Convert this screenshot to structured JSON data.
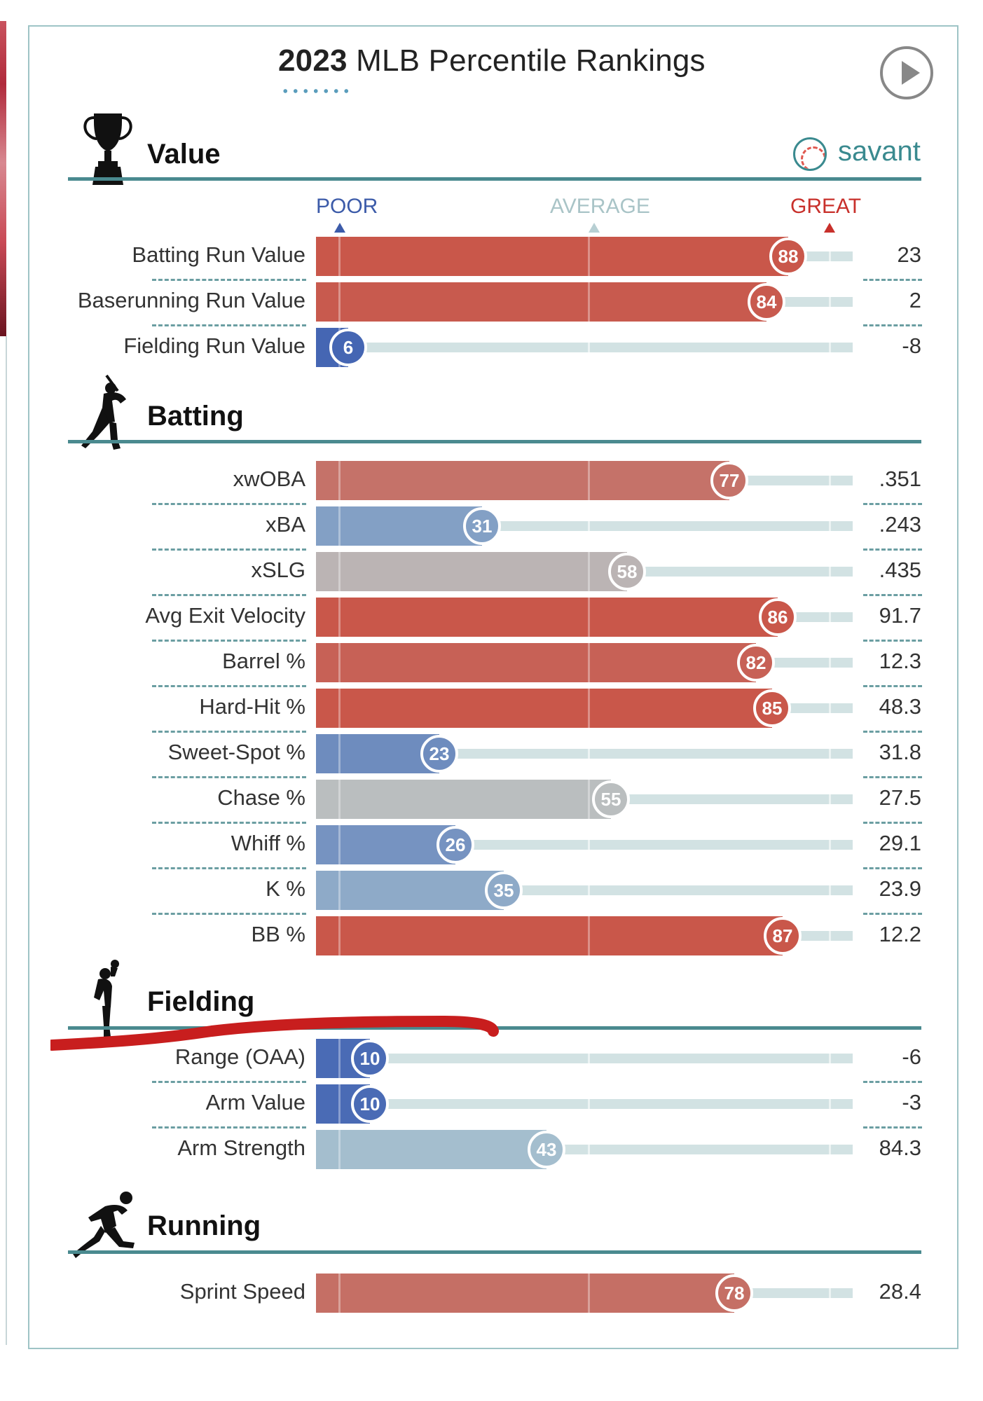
{
  "title": {
    "year": "2023",
    "rest": "MLB Percentile Rankings"
  },
  "brand": "savant",
  "scale": {
    "poor": "POOR",
    "average": "AVERAGE",
    "great": "GREAT"
  },
  "colors": {
    "great": "#c9574a",
    "poor": "#4566b3",
    "average": "#b7cfd3",
    "poor_label": "#3c5ba9",
    "great_label": "#c8302b",
    "avg_label": "#a9c4c7"
  },
  "icons": {
    "value": "trophy-icon",
    "batting": "batter-icon",
    "fielding": "fielder-icon",
    "running": "runner-icon",
    "brand": "baseball-icon",
    "play": "play-icon"
  },
  "chart_data": {
    "type": "bar",
    "title": "2023 MLB Percentile Rankings",
    "xlim": [
      0,
      100
    ],
    "sections": [
      {
        "name": "Value",
        "metrics": [
          {
            "label": "Batting Run Value",
            "percentile": 88,
            "value": "23"
          },
          {
            "label": "Baserunning Run Value",
            "percentile": 84,
            "value": "2"
          },
          {
            "label": "Fielding Run Value",
            "percentile": 6,
            "value": "-8"
          }
        ]
      },
      {
        "name": "Batting",
        "metrics": [
          {
            "label": "xwOBA",
            "percentile": 77,
            "value": ".351"
          },
          {
            "label": "xBA",
            "percentile": 31,
            "value": ".243"
          },
          {
            "label": "xSLG",
            "percentile": 58,
            "value": ".435"
          },
          {
            "label": "Avg Exit Velocity",
            "percentile": 86,
            "value": "91.7"
          },
          {
            "label": "Barrel %",
            "percentile": 82,
            "value": "12.3"
          },
          {
            "label": "Hard-Hit %",
            "percentile": 85,
            "value": "48.3"
          },
          {
            "label": "Sweet-Spot %",
            "percentile": 23,
            "value": "31.8"
          },
          {
            "label": "Chase %",
            "percentile": 55,
            "value": "27.5"
          },
          {
            "label": "Whiff %",
            "percentile": 26,
            "value": "29.1"
          },
          {
            "label": "K %",
            "percentile": 35,
            "value": "23.9"
          },
          {
            "label": "BB %",
            "percentile": 87,
            "value": "12.2"
          }
        ]
      },
      {
        "name": "Fielding",
        "metrics": [
          {
            "label": "Range (OAA)",
            "percentile": 10,
            "value": "-6"
          },
          {
            "label": "Arm Value",
            "percentile": 10,
            "value": "-3"
          },
          {
            "label": "Arm Strength",
            "percentile": 43,
            "value": "84.3"
          }
        ]
      },
      {
        "name": "Running",
        "metrics": [
          {
            "label": "Sprint Speed",
            "percentile": 78,
            "value": "28.4"
          }
        ]
      }
    ]
  }
}
